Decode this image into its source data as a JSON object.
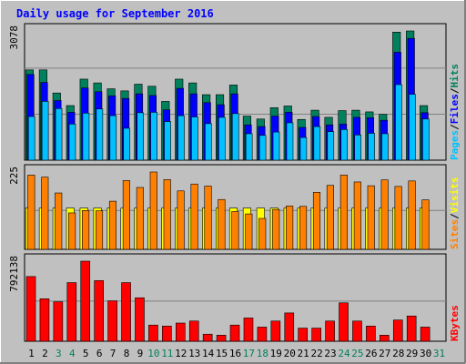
{
  "title": "Daily usage for September 2016",
  "colors": {
    "background": "#c0c0c0",
    "title": "#0000ff",
    "hits": "#00805c",
    "files": "#0000ff",
    "pages": "#00c0ff",
    "visits": "#ffff00",
    "sites": "#ff8000",
    "kbytes": "#ff0000",
    "weekday": "#000000",
    "weekend": "#00805c"
  },
  "chart_data": [
    {
      "type": "bar",
      "name": "hits-files-pages",
      "x": [
        1,
        2,
        3,
        4,
        5,
        6,
        7,
        8,
        9,
        10,
        11,
        12,
        13,
        14,
        15,
        16,
        17,
        18,
        19,
        20,
        21,
        22,
        23,
        24,
        25,
        26,
        27,
        28,
        29,
        30,
        31
      ],
      "ymax": 3078,
      "ytick_label": "3078",
      "series": [
        {
          "name": "Hits",
          "values": [
            2150,
            2150,
            1600,
            1300,
            1930,
            1840,
            1700,
            1650,
            1810,
            1760,
            1400,
            1930,
            1840,
            1560,
            1560,
            1790,
            1050,
            980,
            1250,
            1290,
            970,
            1190,
            1020,
            1180,
            1190,
            1150,
            1090,
            3050,
            3078,
            1300,
            0
          ]
        },
        {
          "name": "Files",
          "values": [
            2040,
            1850,
            1420,
            1140,
            1720,
            1630,
            1530,
            1470,
            1580,
            1540,
            1200,
            1710,
            1580,
            1370,
            1320,
            1580,
            840,
            800,
            1050,
            1140,
            780,
            1040,
            840,
            860,
            1020,
            1010,
            950,
            2570,
            2900,
            1130,
            0
          ]
        },
        {
          "name": "Pages",
          "values": [
            1040,
            1400,
            1230,
            860,
            1120,
            1220,
            1060,
            760,
            1130,
            1140,
            920,
            1060,
            1030,
            870,
            1020,
            1110,
            630,
            590,
            670,
            890,
            540,
            800,
            680,
            730,
            600,
            640,
            630,
            1800,
            1570,
            980,
            0
          ]
        }
      ],
      "right_labels": [
        "Pages",
        "/",
        "Files",
        "/",
        "Hits"
      ]
    },
    {
      "type": "bar",
      "name": "visits-sites",
      "x": [
        1,
        2,
        3,
        4,
        5,
        6,
        7,
        8,
        9,
        10,
        11,
        12,
        13,
        14,
        15,
        16,
        17,
        18,
        19,
        20,
        21,
        22,
        23,
        24,
        25,
        26,
        27,
        28,
        29,
        30,
        31
      ],
      "ymax": 225,
      "ytick_label": "225",
      "series": [
        {
          "name": "Visits",
          "values": [
            120,
            120,
            120,
            120,
            120,
            120,
            120,
            120,
            120,
            120,
            120,
            120,
            120,
            120,
            120,
            120,
            120,
            120,
            120,
            120,
            120,
            120,
            120,
            120,
            120,
            120,
            120,
            120,
            120,
            120,
            0
          ]
        },
        {
          "name": "Sites",
          "values": [
            216,
            210,
            164,
            106,
            113,
            112,
            140,
            200,
            180,
            225,
            203,
            170,
            190,
            184,
            145,
            110,
            103,
            90,
            116,
            126,
            125,
            166,
            186,
            216,
            196,
            185,
            202,
            183,
            199,
            144,
            0
          ]
        }
      ],
      "right_labels": [
        "Sites",
        "/",
        "Visits"
      ]
    },
    {
      "type": "bar",
      "name": "kbytes",
      "x": [
        1,
        2,
        3,
        4,
        5,
        6,
        7,
        8,
        9,
        10,
        11,
        12,
        13,
        14,
        15,
        16,
        17,
        18,
        19,
        20,
        21,
        22,
        23,
        24,
        25,
        26,
        27,
        28,
        29,
        30,
        31
      ],
      "ymax": 792138,
      "ytick_label": "792138",
      "series": [
        {
          "name": "KBytes",
          "values": [
            640000,
            420000,
            390000,
            580000,
            792138,
            600000,
            400000,
            580000,
            430000,
            160000,
            150000,
            180000,
            200000,
            70000,
            60000,
            160000,
            230000,
            140000,
            200000,
            280000,
            130000,
            130000,
            200000,
            380000,
            200000,
            150000,
            60000,
            210000,
            250000,
            140000,
            0
          ]
        }
      ],
      "right_labels": [
        "KBytes"
      ]
    }
  ],
  "days": [
    {
      "label": "1",
      "weekend": false
    },
    {
      "label": "2",
      "weekend": false
    },
    {
      "label": "3",
      "weekend": true
    },
    {
      "label": "4",
      "weekend": true
    },
    {
      "label": "5",
      "weekend": false
    },
    {
      "label": "6",
      "weekend": false
    },
    {
      "label": "7",
      "weekend": false
    },
    {
      "label": "8",
      "weekend": false
    },
    {
      "label": "9",
      "weekend": false
    },
    {
      "label": "10",
      "weekend": true
    },
    {
      "label": "11",
      "weekend": true
    },
    {
      "label": "12",
      "weekend": false
    },
    {
      "label": "13",
      "weekend": false
    },
    {
      "label": "14",
      "weekend": false
    },
    {
      "label": "15",
      "weekend": false
    },
    {
      "label": "16",
      "weekend": false
    },
    {
      "label": "17",
      "weekend": true
    },
    {
      "label": "18",
      "weekend": true
    },
    {
      "label": "19",
      "weekend": false
    },
    {
      "label": "20",
      "weekend": false
    },
    {
      "label": "21",
      "weekend": false
    },
    {
      "label": "22",
      "weekend": false
    },
    {
      "label": "23",
      "weekend": false
    },
    {
      "label": "24",
      "weekend": true
    },
    {
      "label": "25",
      "weekend": true
    },
    {
      "label": "26",
      "weekend": false
    },
    {
      "label": "27",
      "weekend": false
    },
    {
      "label": "28",
      "weekend": false
    },
    {
      "label": "29",
      "weekend": false
    },
    {
      "label": "30",
      "weekend": false
    },
    {
      "label": "31",
      "weekend": true
    }
  ]
}
